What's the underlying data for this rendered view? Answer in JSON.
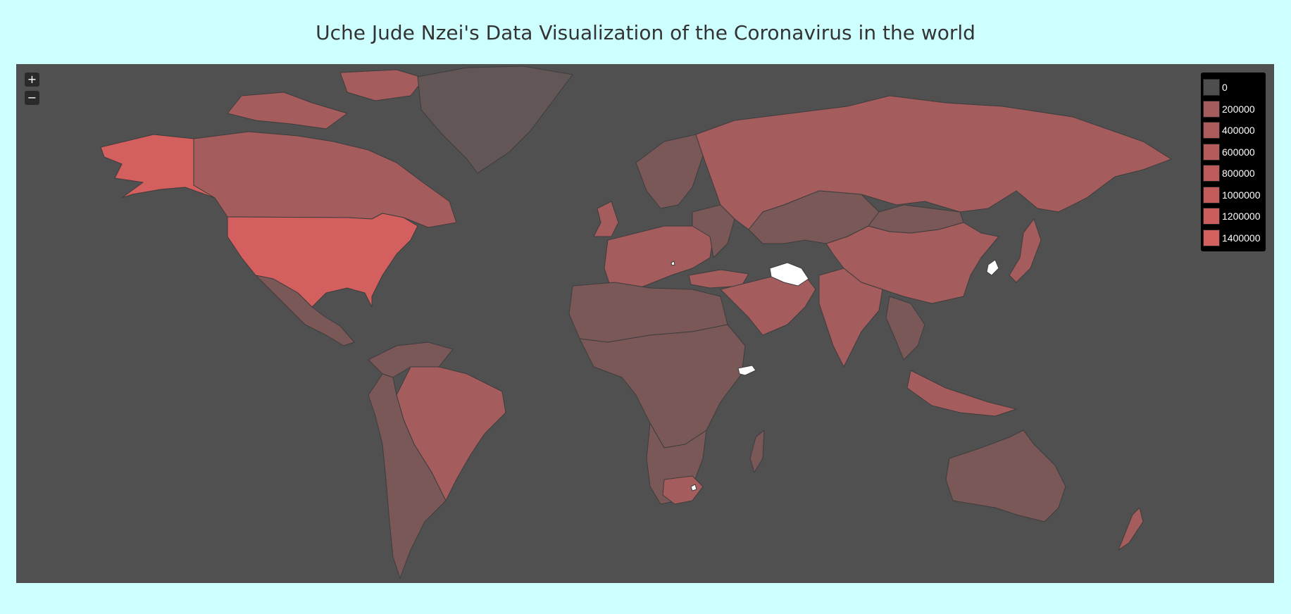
{
  "page": {
    "title": "Uche Jude Nzei's Data Visualization of the Coronavirus in the world"
  },
  "zoom": {
    "in_label": "+",
    "out_label": "−"
  },
  "legend": {
    "items": [
      {
        "label": "0",
        "color": "#4e4e4e"
      },
      {
        "label": "200000",
        "color": "#a55c5c"
      },
      {
        "label": "400000",
        "color": "#ad5b5b"
      },
      {
        "label": "600000",
        "color": "#b55b5b"
      },
      {
        "label": "800000",
        "color": "#bd5b5b"
      },
      {
        "label": "1000000",
        "color": "#c45c5c"
      },
      {
        "label": "1200000",
        "color": "#cc5d5d"
      },
      {
        "label": "1400000",
        "color": "#d45f5f"
      }
    ]
  },
  "map": {
    "ocean_color": "#505050",
    "border_color": "#3d3d3d",
    "no_data_color": "#ffffff",
    "fill_colors": {
      "low": "#7a5858",
      "mid": "#a55c5c",
      "high": "#d45f5f",
      "greenland": "#635656"
    }
  }
}
